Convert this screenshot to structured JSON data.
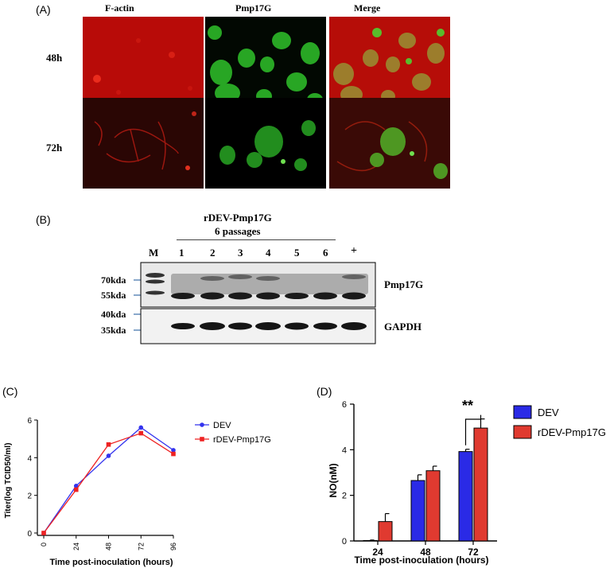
{
  "panelA": {
    "label": "(A)",
    "columns": [
      "F-actin",
      "Pmp17G",
      "Merge"
    ],
    "rows": [
      "48h",
      "72h"
    ]
  },
  "panelB": {
    "label": "(B)",
    "header_line1": "rDEV-Pmp17G",
    "header_line2": "6 passages",
    "lanes": [
      "M",
      "1",
      "2",
      "3",
      "4",
      "5",
      "6",
      "+"
    ],
    "markers_top": [
      "70kda",
      "55kda"
    ],
    "markers_bottom": [
      "40kda",
      "35kda"
    ],
    "band_top": "Pmp17G",
    "band_bottom": "GAPDH"
  },
  "panelC": {
    "label": "(C)",
    "chart_data": {
      "type": "line",
      "x": [
        0,
        24,
        48,
        72,
        96
      ],
      "xlabel": "Time post-inoculation (hours)",
      "ylabel": "Titer(log TCID50/ml)",
      "ylim": [
        0,
        6
      ],
      "yticks": [
        0,
        2,
        4,
        6
      ],
      "series": [
        {
          "name": "DEV",
          "color": "#3333ee",
          "values": [
            0,
            2.5,
            4.1,
            5.6,
            4.4
          ]
        },
        {
          "name": "rDEV-Pmp17G",
          "color": "#ee2222",
          "values": [
            0,
            2.3,
            4.7,
            5.3,
            4.2
          ]
        }
      ]
    }
  },
  "panelD": {
    "label": "(D)",
    "significance": "**",
    "chart_data": {
      "type": "bar",
      "categories": [
        "24",
        "48",
        "72"
      ],
      "xlabel": "Time post-inoculation (hours)",
      "ylabel": "NO(nM)",
      "ylim": [
        0,
        6
      ],
      "yticks": [
        0,
        2,
        4,
        6
      ],
      "series": [
        {
          "name": "DEV",
          "color": "#2a2ae6",
          "values": [
            0.02,
            2.65,
            3.92
          ],
          "errors": [
            0.02,
            0.25,
            0.1
          ]
        },
        {
          "name": "rDEV-Pmp17G",
          "color": "#e03a30",
          "values": [
            0.85,
            3.08,
            4.95
          ],
          "errors": [
            0.35,
            0.2,
            0.4
          ]
        }
      ]
    }
  }
}
